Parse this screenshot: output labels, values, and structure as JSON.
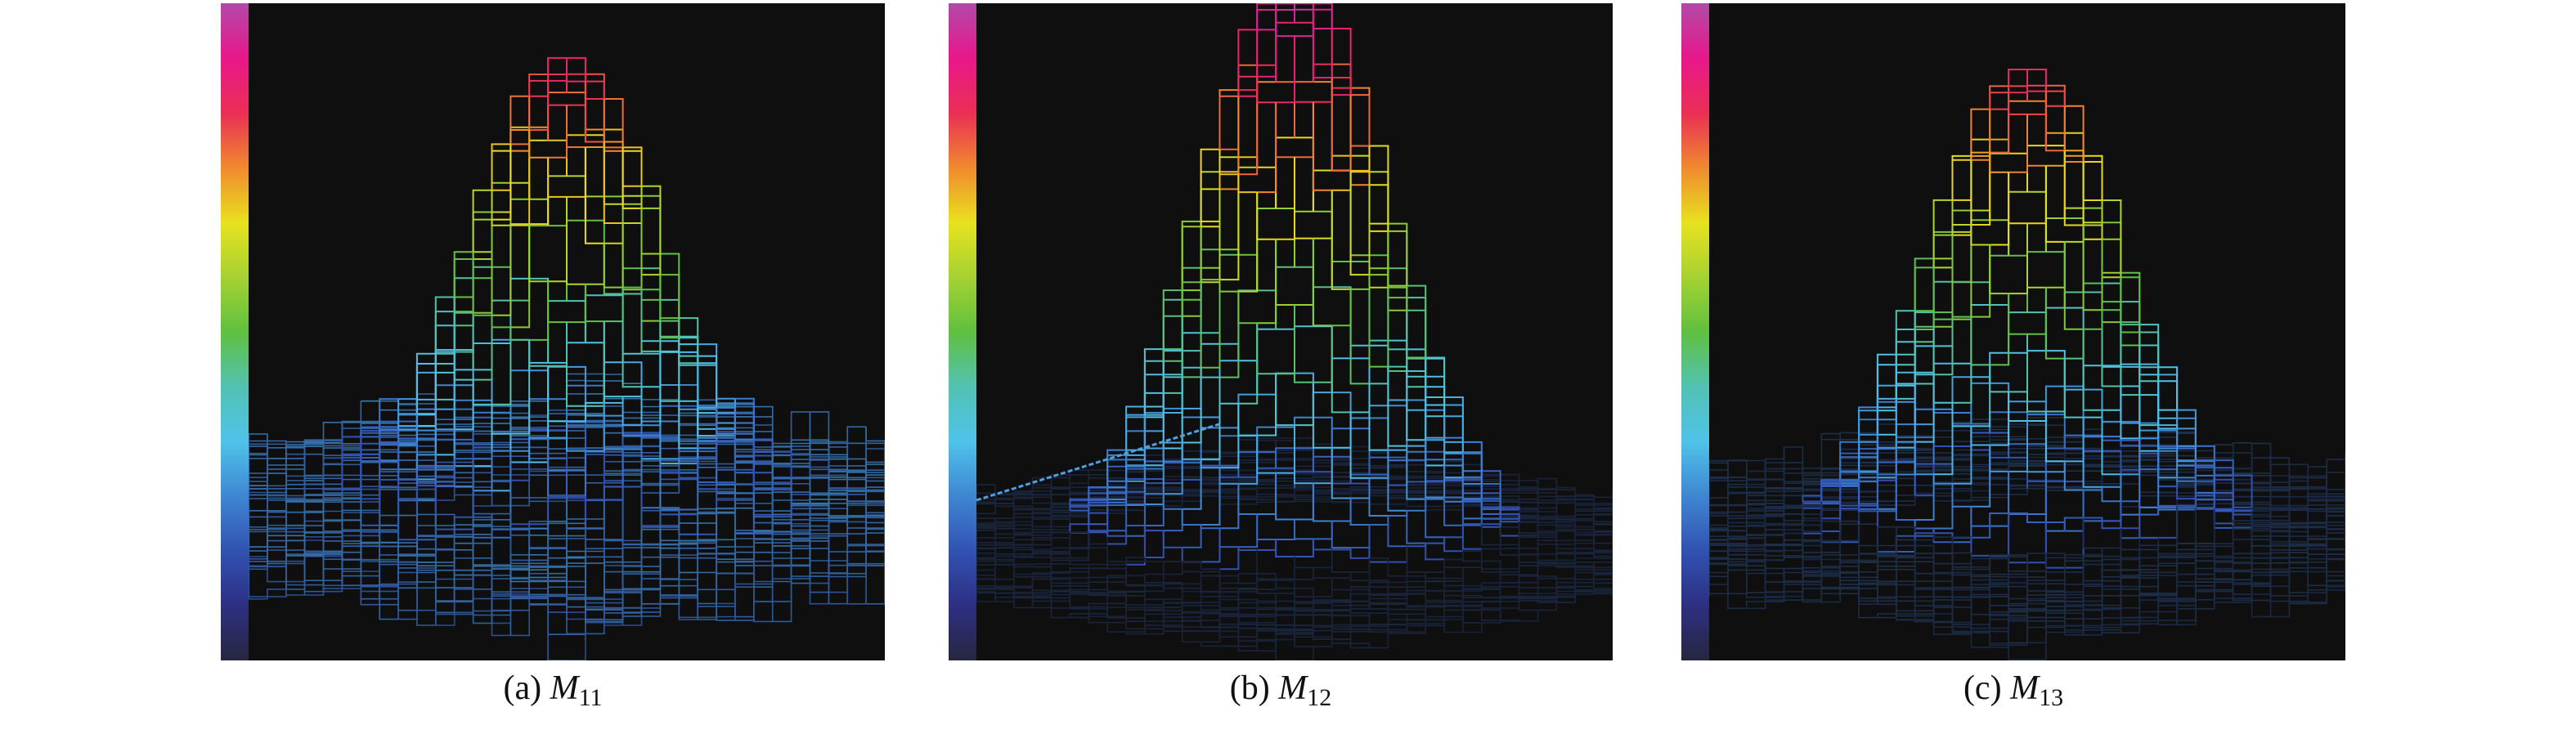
{
  "colorbar_colors": [
    "#b24aa8",
    "#e8178a",
    "#ea2f55",
    "#f0892e",
    "#e8e21e",
    "#a6d232",
    "#5fc03f",
    "#52c2b2",
    "#4fc3ea",
    "#3f86d2",
    "#3152b2",
    "#2e2f82",
    "#262640"
  ],
  "panels": [
    {
      "id": "a",
      "label": "(a)",
      "symbol": "M",
      "subscript": "11",
      "peak": 0.86,
      "noise": 0.34,
      "floor_brightness": 0.75,
      "stray_line": false
    },
    {
      "id": "b",
      "label": "(b)",
      "symbol": "M",
      "subscript": "12",
      "peak": 0.99,
      "noise": 0.08,
      "floor_brightness": 0.25,
      "stray_line": true
    },
    {
      "id": "c",
      "label": "(c)",
      "symbol": "M",
      "subscript": "13",
      "peak": 0.84,
      "noise": 0.2,
      "floor_brightness": 0.3,
      "stray_line": false
    }
  ]
}
